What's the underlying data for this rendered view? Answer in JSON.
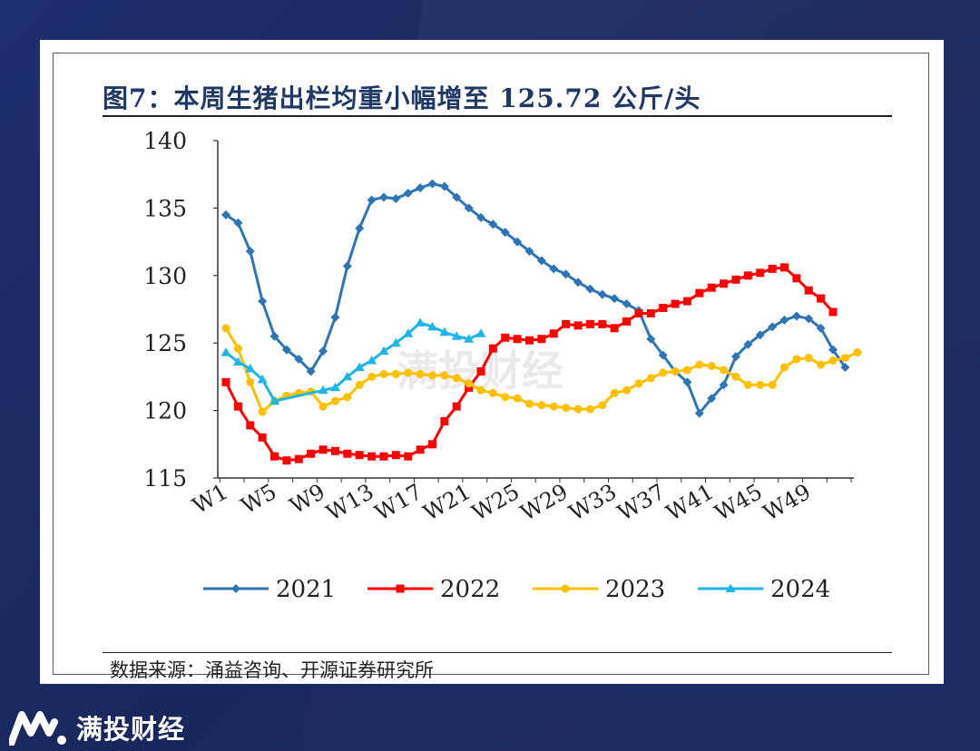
{
  "header": {
    "title": "图7：本周生猪出栏均重小幅增至 125.72 公斤/头"
  },
  "footer": {
    "source": "数据来源：涌益咨询、开源证券研究所"
  },
  "watermark": {
    "text": "满投财经"
  },
  "brand": {
    "name": "满投财经",
    "logo_icon": "mantou-logo-icon"
  },
  "chart_data": {
    "type": "line",
    "title": "本周生猪出栏均重小幅增至 125.72 公斤/头",
    "xlabel": "",
    "ylabel": "",
    "ylim": [
      115,
      140
    ],
    "yticks": [
      "115",
      "120",
      "125",
      "130",
      "135",
      "140"
    ],
    "xticks": [
      "W1",
      "W5",
      "W9",
      "W13",
      "W17",
      "W21",
      "W25",
      "W29",
      "W33",
      "W37",
      "W41",
      "W45",
      "W49"
    ],
    "legend_position": "bottom",
    "series": [
      {
        "name": "2021",
        "color": "#2e75b6",
        "marker": "diamond",
        "values": [
          134.5,
          133.9,
          131.8,
          128.1,
          125.5,
          124.5,
          123.8,
          122.9,
          124.4,
          126.9,
          130.7,
          133.5,
          135.6,
          135.8,
          135.7,
          136.1,
          136.5,
          136.8,
          136.6,
          135.8,
          135.0,
          134.3,
          133.8,
          133.2,
          132.5,
          131.8,
          131.1,
          130.5,
          130.1,
          129.5,
          129.0,
          128.6,
          128.3,
          127.9,
          127.4,
          125.3,
          124.1,
          122.9,
          122.1,
          119.8,
          120.9,
          121.9,
          124.0,
          124.9,
          125.6,
          126.2,
          126.7,
          127.0,
          126.8,
          126.1,
          124.5,
          123.2
        ]
      },
      {
        "name": "2022",
        "color": "#ff0000",
        "marker": "square",
        "values": [
          122.1,
          120.3,
          118.9,
          118.0,
          116.6,
          116.3,
          116.4,
          116.8,
          117.1,
          117.0,
          116.8,
          116.7,
          116.6,
          116.6,
          116.7,
          116.6,
          117.1,
          117.5,
          119.2,
          120.3,
          121.7,
          122.9,
          124.6,
          125.4,
          125.3,
          125.2,
          125.3,
          125.7,
          126.4,
          126.3,
          126.4,
          126.4,
          126.1,
          126.6,
          127.2,
          127.2,
          127.6,
          127.9,
          128.1,
          128.7,
          129.1,
          129.4,
          129.7,
          130.0,
          130.2,
          130.5,
          130.6,
          129.8,
          128.9,
          128.3,
          127.3
        ]
      },
      {
        "name": "2023",
        "color": "#ffc000",
        "marker": "circle",
        "values": [
          126.1,
          124.6,
          122.1,
          119.9,
          120.7,
          121.1,
          121.3,
          121.4,
          120.3,
          120.7,
          121.0,
          121.9,
          122.5,
          122.7,
          122.7,
          122.8,
          122.7,
          122.6,
          122.6,
          122.4,
          122.0,
          121.5,
          121.3,
          121.0,
          120.9,
          120.5,
          120.4,
          120.3,
          120.2,
          120.1,
          120.1,
          120.4,
          121.3,
          121.5,
          122.0,
          122.4,
          122.8,
          122.9,
          123.0,
          123.4,
          123.3,
          123.0,
          122.5,
          121.9,
          121.9,
          121.9,
          123.2,
          123.8,
          123.9,
          123.4,
          123.7,
          123.9,
          124.3
        ]
      },
      {
        "name": "2024",
        "color": "#1fb5e8",
        "marker": "triangle",
        "values": [
          124.3,
          123.6,
          123.1,
          122.3,
          120.7,
          null,
          null,
          null,
          121.5,
          121.7,
          122.5,
          123.2,
          123.7,
          124.4,
          125.0,
          125.7,
          126.5,
          126.2,
          125.8,
          125.5,
          125.3,
          125.7
        ]
      }
    ]
  }
}
